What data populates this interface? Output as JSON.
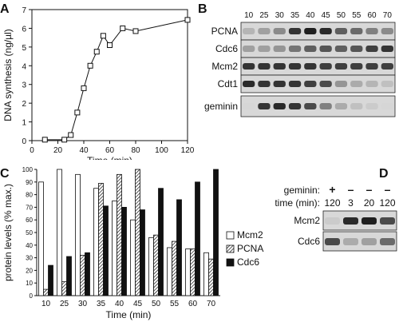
{
  "panels": {
    "A": {
      "letter": "A",
      "chart_data": {
        "type": "line",
        "xlabel": "Time (min)",
        "ylabel": "DNA synthesis (ng/µl)",
        "xlim": [
          0,
          120
        ],
        "ylim": [
          0,
          7
        ],
        "xticks": [
          0,
          20,
          40,
          60,
          80,
          100,
          120
        ],
        "yticks": [
          0,
          1,
          2,
          3,
          4,
          5,
          6,
          7
        ],
        "x": [
          10,
          25,
          30,
          35,
          40,
          45,
          50,
          55,
          60,
          70,
          80,
          120
        ],
        "y": [
          0.05,
          0.05,
          0.3,
          1.5,
          2.8,
          4.0,
          4.75,
          5.6,
          5.1,
          6.0,
          5.85,
          6.45
        ]
      }
    },
    "B": {
      "letter": "B",
      "time_labels": [
        "10",
        "25",
        "30",
        "35",
        "40",
        "45",
        "50",
        "55",
        "60",
        "70"
      ],
      "row_labels": [
        "PCNA",
        "Cdc6",
        "Mcm2",
        "Cdt1",
        "geminin"
      ],
      "band_intensity": {
        "PCNA": [
          0.25,
          0.35,
          0.45,
          0.85,
          0.95,
          0.9,
          0.65,
          0.6,
          0.5,
          0.45
        ],
        "Cdc6": [
          0.35,
          0.35,
          0.4,
          0.55,
          0.65,
          0.7,
          0.65,
          0.7,
          0.8,
          0.85
        ],
        "Mcm2": [
          0.85,
          0.85,
          0.85,
          0.85,
          0.85,
          0.8,
          0.8,
          0.8,
          0.8,
          0.8
        ],
        "Cdt1": [
          0.9,
          0.85,
          0.85,
          0.85,
          0.8,
          0.75,
          0.4,
          0.3,
          0.25,
          0.2
        ],
        "geminin": [
          0.1,
          0.85,
          0.9,
          0.85,
          0.75,
          0.5,
          0.3,
          0.2,
          0.15,
          0.1
        ]
      }
    },
    "C": {
      "letter": "C",
      "chart_data": {
        "type": "bar",
        "xlabel": "Time (min)",
        "ylabel": "protein levels (% max.)",
        "ylim": [
          0,
          100
        ],
        "yticks": [
          0,
          10,
          20,
          30,
          40,
          50,
          60,
          70,
          80,
          90,
          100
        ],
        "categories": [
          "10",
          "25",
          "30",
          "35",
          "40",
          "45",
          "50",
          "55",
          "60",
          "70"
        ],
        "series": [
          {
            "name": "Mcm2",
            "values": [
              90,
              100,
              96,
              85,
              75,
              60,
              46,
              38,
              37,
              34
            ]
          },
          {
            "name": "PCNA",
            "values": [
              5,
              11,
              32,
              89,
              96,
              100,
              48,
              43,
              37,
              29
            ]
          },
          {
            "name": "Cdc6",
            "values": [
              24,
              31,
              34,
              71,
              70,
              68,
              85,
              76,
              90,
              100
            ]
          }
        ],
        "legend": "right"
      }
    },
    "D": {
      "letter": "D",
      "header_labels": [
        "geminin:",
        "time (min):"
      ],
      "geminin_marks": [
        "+",
        "–",
        "–",
        "–"
      ],
      "time_values": [
        "120",
        "3",
        "20",
        "120"
      ],
      "row_labels": [
        "Mcm2",
        "Cdc6"
      ],
      "band_intensity": {
        "Mcm2": [
          0.15,
          0.9,
          0.95,
          0.75
        ],
        "Cdc6": [
          0.75,
          0.3,
          0.35,
          0.6
        ]
      }
    }
  }
}
